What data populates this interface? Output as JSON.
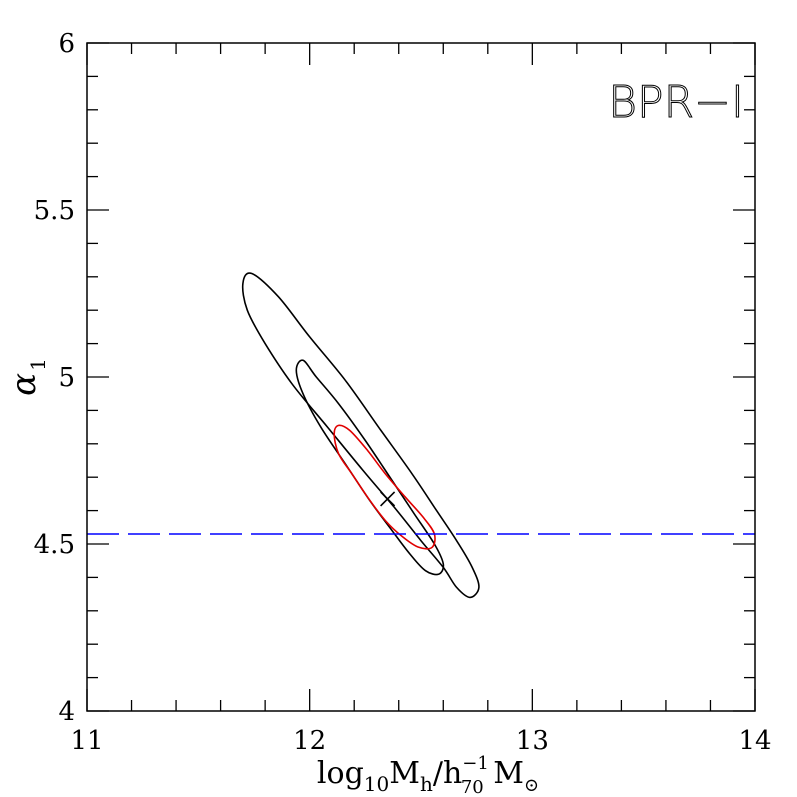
{
  "chart_data": {
    "type": "contour",
    "annotation": "BPR−I",
    "xlabel": {
      "main": "log",
      "sub1": "10",
      "m1": "M",
      "sub2": "h",
      "slash": "/h",
      "sup3": "−1",
      "sub3": "70",
      "m2": " M",
      "sub4": "⊙"
    },
    "ylabel": {
      "main": "α",
      "sub": "1"
    },
    "xlim": [
      11,
      14
    ],
    "ylim": [
      4,
      6
    ],
    "xticks": [
      {
        "value": 11,
        "label": "11"
      },
      {
        "value": 12,
        "label": "12"
      },
      {
        "value": 13,
        "label": "13"
      },
      {
        "value": 14,
        "label": "14"
      }
    ],
    "yticks": [
      {
        "value": 4,
        "label": "4"
      },
      {
        "value": 4.5,
        "label": "4.5"
      },
      {
        "value": 5,
        "label": "5"
      },
      {
        "value": 5.5,
        "label": "5.5"
      },
      {
        "value": 6,
        "label": "6"
      }
    ],
    "x_minor_step": 0.2,
    "y_minor_step": 0.1,
    "best_fit": {
      "x": 12.35,
      "y": 4.635,
      "color": "#000000"
    },
    "reference_line": {
      "y": 4.53,
      "color": "#0000ff",
      "style": "dashed"
    },
    "contours": [
      {
        "level": "outer",
        "color": "#000000",
        "points": [
          [
            11.74,
            5.31
          ],
          [
            11.7,
            5.28
          ],
          [
            11.72,
            5.2
          ],
          [
            11.8,
            5.1
          ],
          [
            11.92,
            4.98
          ],
          [
            12.08,
            4.85
          ],
          [
            12.24,
            4.72
          ],
          [
            12.38,
            4.61
          ],
          [
            12.5,
            4.51
          ],
          [
            12.6,
            4.43
          ],
          [
            12.66,
            4.37
          ],
          [
            12.72,
            4.34
          ],
          [
            12.76,
            4.37
          ],
          [
            12.73,
            4.43
          ],
          [
            12.66,
            4.51
          ],
          [
            12.57,
            4.6
          ],
          [
            12.46,
            4.71
          ],
          [
            12.32,
            4.84
          ],
          [
            12.16,
            4.99
          ],
          [
            12.0,
            5.12
          ],
          [
            11.86,
            5.24
          ]
        ]
      },
      {
        "level": "middle",
        "color": "#000000",
        "points": [
          [
            11.97,
            5.05
          ],
          [
            11.94,
            5.02
          ],
          [
            11.97,
            4.95
          ],
          [
            12.05,
            4.85
          ],
          [
            12.16,
            4.74
          ],
          [
            12.27,
            4.63
          ],
          [
            12.37,
            4.54
          ],
          [
            12.45,
            4.47
          ],
          [
            12.52,
            4.42
          ],
          [
            12.58,
            4.41
          ],
          [
            12.6,
            4.44
          ],
          [
            12.56,
            4.5
          ],
          [
            12.47,
            4.59
          ],
          [
            12.37,
            4.69
          ],
          [
            12.25,
            4.81
          ],
          [
            12.13,
            4.92
          ],
          [
            12.03,
            5.0
          ]
        ]
      },
      {
        "level": "inner",
        "color": "#e00000",
        "points": [
          [
            12.13,
            4.855
          ],
          [
            12.11,
            4.83
          ],
          [
            12.13,
            4.77
          ],
          [
            12.19,
            4.71
          ],
          [
            12.26,
            4.64
          ],
          [
            12.34,
            4.57
          ],
          [
            12.42,
            4.52
          ],
          [
            12.49,
            4.49
          ],
          [
            12.55,
            4.49
          ],
          [
            12.56,
            4.53
          ],
          [
            12.51,
            4.58
          ],
          [
            12.43,
            4.64
          ],
          [
            12.34,
            4.71
          ],
          [
            12.26,
            4.78
          ],
          [
            12.18,
            4.84
          ]
        ]
      }
    ]
  }
}
